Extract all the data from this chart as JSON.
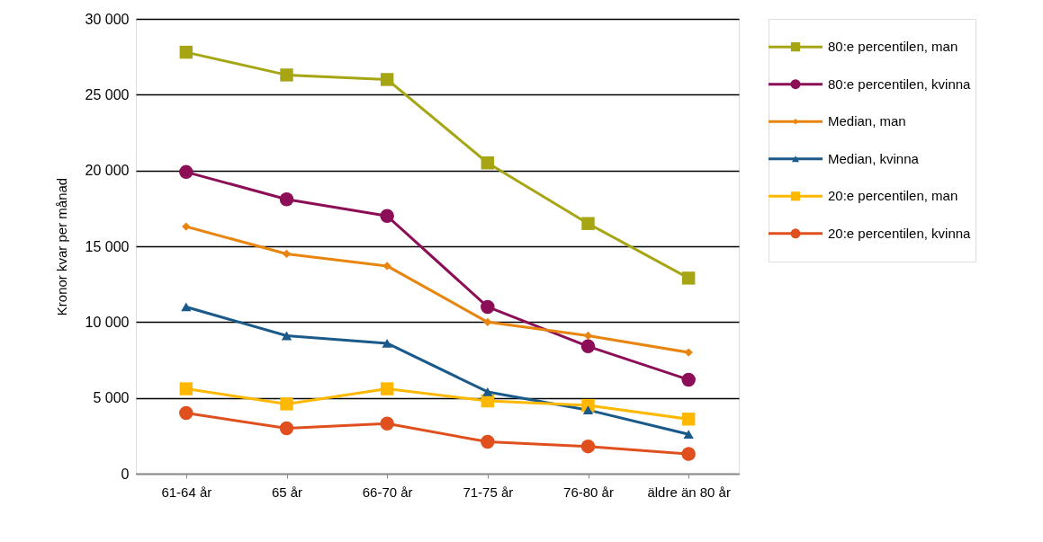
{
  "chart_data": {
    "type": "line",
    "ylabel": "Kronor kvar per månad",
    "categories": [
      "61-64 år",
      "65 år",
      "66-70 år",
      "71-75 år",
      "76-80 år",
      "äldre än 80 år"
    ],
    "ylim": [
      0,
      30000
    ],
    "yticks": [
      0,
      {
        "value": 5000,
        "label": "5 000"
      },
      {
        "value": 10000,
        "label": "10 000"
      },
      {
        "value": 15000,
        "label": "15 000"
      },
      {
        "value": 20000,
        "label": "20 000"
      },
      {
        "value": 25000,
        "label": "25 000"
      },
      {
        "value": 30000,
        "label": "30 000"
      }
    ],
    "grid": "y",
    "legend": "right",
    "series": [
      {
        "name": "80:e percentilen, man",
        "color": "#a6a614",
        "marker": "square",
        "values": [
          27800,
          26300,
          26000,
          20500,
          16500,
          12900
        ]
      },
      {
        "name": "80:e percentilen, kvinna",
        "color": "#8b0e57",
        "marker": "circle",
        "values": [
          19900,
          18100,
          17000,
          11000,
          8400,
          6200
        ]
      },
      {
        "name": "Median, man",
        "color": "#e8850f",
        "marker": "diamond",
        "values": [
          16300,
          14500,
          13700,
          10000,
          9100,
          8000
        ]
      },
      {
        "name": "Median, kvinna",
        "color": "#1a5a8a",
        "marker": "triangle",
        "values": [
          11000,
          9100,
          8600,
          5400,
          4200,
          2600
        ]
      },
      {
        "name": "20:e percentilen, man",
        "color": "#ffb800",
        "marker": "square",
        "values": [
          5600,
          4600,
          5600,
          4800,
          4500,
          3600
        ]
      },
      {
        "name": "20:e percentilen, kvinna",
        "color": "#e0501e",
        "marker": "circle",
        "values": [
          4000,
          3000,
          3300,
          2100,
          1800,
          1300
        ]
      }
    ]
  }
}
